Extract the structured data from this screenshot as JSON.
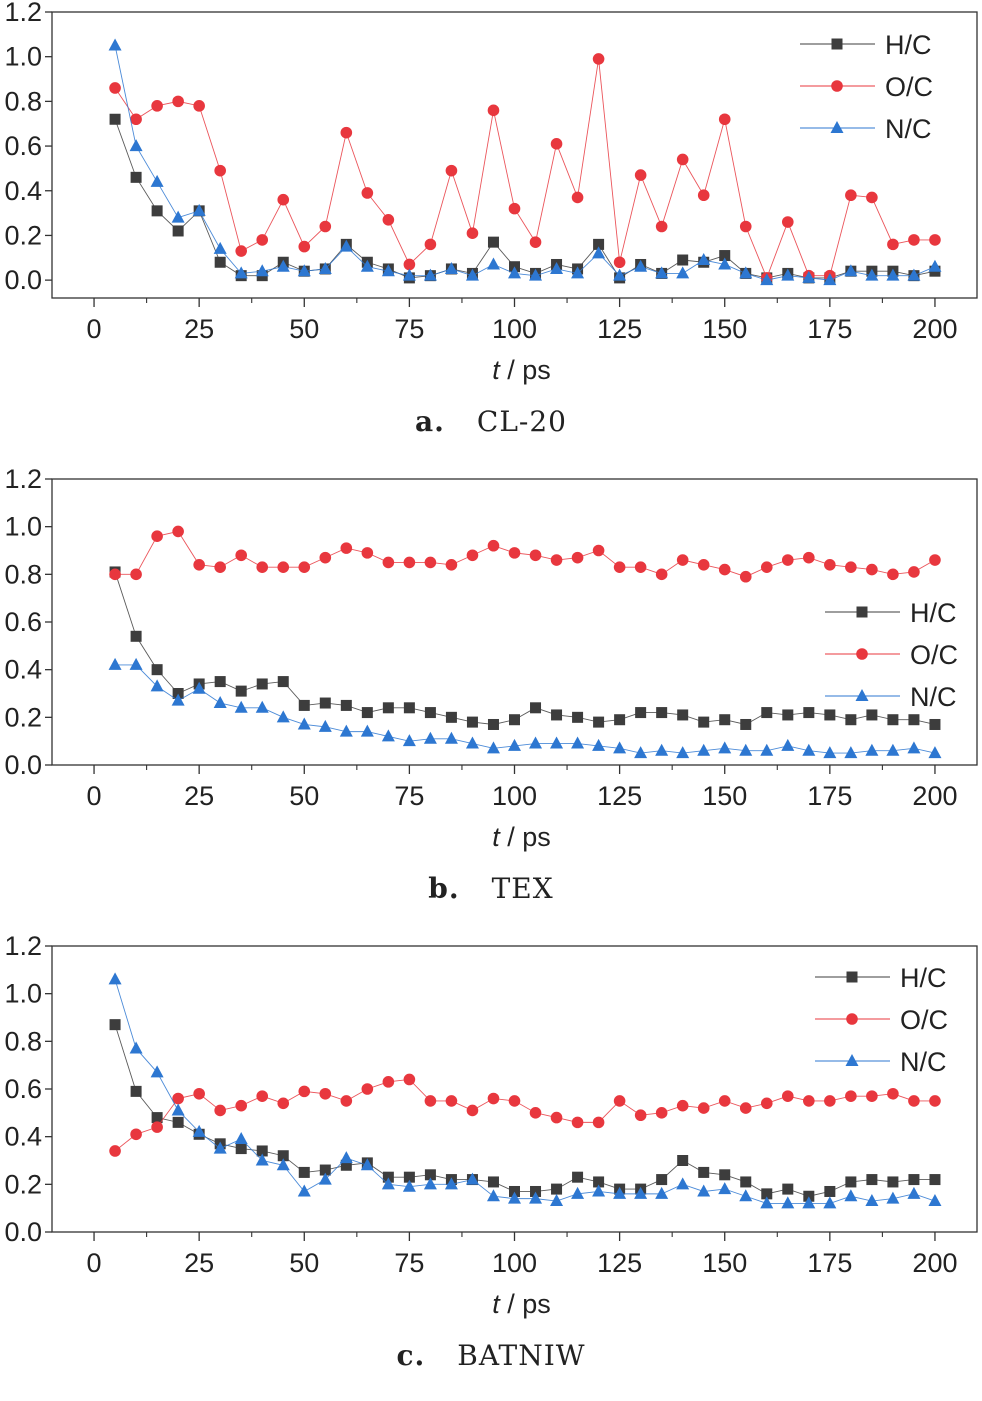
{
  "chart_data": [
    {
      "type": "line",
      "caption_letter": "a.",
      "caption_name": "CL-20",
      "xlabel_var": "t",
      "xlabel_unit": " / ps",
      "xlim": [
        -10,
        210
      ],
      "ylim": [
        -0.08,
        1.2
      ],
      "xticks": [
        0,
        25,
        50,
        75,
        100,
        125,
        150,
        175,
        200
      ],
      "yticks": [
        0.0,
        0.2,
        0.4,
        0.6,
        0.8,
        1.0,
        1.2
      ],
      "ytick_labels": [
        "0.0",
        "0.2",
        "0.4",
        "0.6",
        "0.8",
        "1.0",
        "1.2"
      ],
      "legend_position": "top-right",
      "x": [
        5,
        10,
        15,
        20,
        25,
        30,
        35,
        40,
        45,
        50,
        55,
        60,
        65,
        70,
        75,
        80,
        85,
        90,
        95,
        100,
        105,
        110,
        115,
        120,
        125,
        130,
        135,
        140,
        145,
        150,
        155,
        160,
        165,
        170,
        175,
        180,
        185,
        190,
        195,
        200
      ],
      "series": [
        {
          "name": "H/C",
          "marker": "square",
          "color": "#3d3d3d",
          "values": [
            0.72,
            0.46,
            0.31,
            0.22,
            0.31,
            0.08,
            0.02,
            0.02,
            0.08,
            0.04,
            0.05,
            0.16,
            0.08,
            0.05,
            0.01,
            0.02,
            0.05,
            0.03,
            0.17,
            0.06,
            0.03,
            0.07,
            0.05,
            0.16,
            0.01,
            0.07,
            0.03,
            0.09,
            0.08,
            0.11,
            0.03,
            0.01,
            0.03,
            0.01,
            0.01,
            0.04,
            0.04,
            0.04,
            0.02,
            0.04
          ]
        },
        {
          "name": "O/C",
          "marker": "circle",
          "color": "#e8373e",
          "values": [
            0.86,
            0.72,
            0.78,
            0.8,
            0.78,
            0.49,
            0.13,
            0.18,
            0.36,
            0.15,
            0.24,
            0.66,
            0.39,
            0.27,
            0.07,
            0.16,
            0.49,
            0.21,
            0.76,
            0.32,
            0.17,
            0.61,
            0.37,
            0.99,
            0.08,
            0.47,
            0.24,
            0.54,
            0.38,
            0.72,
            0.24,
            0.01,
            0.26,
            0.02,
            0.02,
            0.38,
            0.37,
            0.16,
            0.18,
            0.18
          ]
        },
        {
          "name": "N/C",
          "marker": "triangle",
          "color": "#2d77d1",
          "values": [
            1.05,
            0.6,
            0.44,
            0.28,
            0.31,
            0.14,
            0.03,
            0.04,
            0.06,
            0.04,
            0.05,
            0.15,
            0.06,
            0.04,
            0.02,
            0.02,
            0.05,
            0.02,
            0.07,
            0.03,
            0.02,
            0.05,
            0.03,
            0.12,
            0.02,
            0.06,
            0.03,
            0.03,
            0.09,
            0.07,
            0.03,
            0.0,
            0.02,
            0.01,
            0.0,
            0.04,
            0.02,
            0.02,
            0.02,
            0.06
          ]
        }
      ]
    },
    {
      "type": "line",
      "caption_letter": "b.",
      "caption_name": "TEX",
      "xlabel_var": "t",
      "xlabel_unit": " / ps",
      "xlim": [
        -10,
        210
      ],
      "ylim": [
        0.0,
        1.2
      ],
      "xticks": [
        0,
        25,
        50,
        75,
        100,
        125,
        150,
        175,
        200
      ],
      "yticks": [
        0.0,
        0.2,
        0.4,
        0.6,
        0.8,
        1.0,
        1.2
      ],
      "ytick_labels": [
        "0.0",
        "0.2",
        "0.4",
        "0.6",
        "0.8",
        "1.0",
        "1.2"
      ],
      "legend_position": "center-right",
      "x": [
        5,
        10,
        15,
        20,
        25,
        30,
        35,
        40,
        45,
        50,
        55,
        60,
        65,
        70,
        75,
        80,
        85,
        90,
        95,
        100,
        105,
        110,
        115,
        120,
        125,
        130,
        135,
        140,
        145,
        150,
        155,
        160,
        165,
        170,
        175,
        180,
        185,
        190,
        195,
        200
      ],
      "series": [
        {
          "name": "H/C",
          "marker": "square",
          "color": "#3d3d3d",
          "values": [
            0.81,
            0.54,
            0.4,
            0.3,
            0.34,
            0.35,
            0.31,
            0.34,
            0.35,
            0.25,
            0.26,
            0.25,
            0.22,
            0.24,
            0.24,
            0.22,
            0.2,
            0.18,
            0.17,
            0.19,
            0.24,
            0.21,
            0.2,
            0.18,
            0.19,
            0.22,
            0.22,
            0.21,
            0.18,
            0.19,
            0.17,
            0.22,
            0.21,
            0.22,
            0.21,
            0.19,
            0.21,
            0.19,
            0.19,
            0.17
          ]
        },
        {
          "name": "O/C",
          "marker": "circle",
          "color": "#e8373e",
          "values": [
            0.8,
            0.8,
            0.96,
            0.98,
            0.84,
            0.83,
            0.88,
            0.83,
            0.83,
            0.83,
            0.87,
            0.91,
            0.89,
            0.85,
            0.85,
            0.85,
            0.84,
            0.88,
            0.92,
            0.89,
            0.88,
            0.86,
            0.87,
            0.9,
            0.83,
            0.83,
            0.8,
            0.86,
            0.84,
            0.82,
            0.79,
            0.83,
            0.86,
            0.87,
            0.84,
            0.83,
            0.82,
            0.8,
            0.81,
            0.86
          ]
        },
        {
          "name": "N/C",
          "marker": "triangle",
          "color": "#2d77d1",
          "values": [
            0.42,
            0.42,
            0.33,
            0.27,
            0.32,
            0.26,
            0.24,
            0.24,
            0.2,
            0.17,
            0.16,
            0.14,
            0.14,
            0.12,
            0.1,
            0.11,
            0.11,
            0.09,
            0.07,
            0.08,
            0.09,
            0.09,
            0.09,
            0.08,
            0.07,
            0.05,
            0.06,
            0.05,
            0.06,
            0.07,
            0.06,
            0.06,
            0.08,
            0.06,
            0.05,
            0.05,
            0.06,
            0.06,
            0.07,
            0.05
          ]
        }
      ]
    },
    {
      "type": "line",
      "caption_letter": "c.",
      "caption_name": "BATNIW",
      "xlabel_var": "t",
      "xlabel_unit": " / ps",
      "xlim": [
        -10,
        210
      ],
      "ylim": [
        0.0,
        1.2
      ],
      "xticks": [
        0,
        25,
        50,
        75,
        100,
        125,
        150,
        175,
        200
      ],
      "yticks": [
        0.0,
        0.2,
        0.4,
        0.6,
        0.8,
        1.0,
        1.2
      ],
      "ytick_labels": [
        "0.0",
        "0.2",
        "0.4",
        "0.6",
        "0.8",
        "1.0",
        "1.2"
      ],
      "legend_position": "top-right",
      "x": [
        5,
        10,
        15,
        20,
        25,
        30,
        35,
        40,
        45,
        50,
        55,
        60,
        65,
        70,
        75,
        80,
        85,
        90,
        95,
        100,
        105,
        110,
        115,
        120,
        125,
        130,
        135,
        140,
        145,
        150,
        155,
        160,
        165,
        170,
        175,
        180,
        185,
        190,
        195,
        200
      ],
      "series": [
        {
          "name": "H/C",
          "marker": "square",
          "color": "#3d3d3d",
          "values": [
            0.87,
            0.59,
            0.48,
            0.46,
            0.41,
            0.37,
            0.35,
            0.34,
            0.32,
            0.25,
            0.26,
            0.28,
            0.29,
            0.23,
            0.23,
            0.24,
            0.22,
            0.22,
            0.21,
            0.17,
            0.17,
            0.18,
            0.23,
            0.21,
            0.18,
            0.18,
            0.22,
            0.3,
            0.25,
            0.24,
            0.21,
            0.16,
            0.18,
            0.15,
            0.17,
            0.21,
            0.22,
            0.21,
            0.22,
            0.22
          ]
        },
        {
          "name": "O/C",
          "marker": "circle",
          "color": "#e8373e",
          "values": [
            0.34,
            0.41,
            0.44,
            0.56,
            0.58,
            0.51,
            0.53,
            0.57,
            0.54,
            0.59,
            0.58,
            0.55,
            0.6,
            0.63,
            0.64,
            0.55,
            0.55,
            0.51,
            0.56,
            0.55,
            0.5,
            0.48,
            0.46,
            0.46,
            0.55,
            0.49,
            0.5,
            0.53,
            0.52,
            0.55,
            0.52,
            0.54,
            0.57,
            0.55,
            0.55,
            0.57,
            0.57,
            0.58,
            0.55,
            0.55
          ]
        },
        {
          "name": "N/C",
          "marker": "triangle",
          "color": "#2d77d1",
          "values": [
            1.06,
            0.77,
            0.67,
            0.51,
            0.42,
            0.35,
            0.39,
            0.3,
            0.28,
            0.17,
            0.22,
            0.31,
            0.28,
            0.2,
            0.19,
            0.2,
            0.2,
            0.22,
            0.15,
            0.14,
            0.14,
            0.13,
            0.16,
            0.17,
            0.16,
            0.16,
            0.16,
            0.2,
            0.17,
            0.18,
            0.15,
            0.12,
            0.12,
            0.12,
            0.12,
            0.15,
            0.13,
            0.14,
            0.16,
            0.13
          ]
        }
      ]
    }
  ]
}
